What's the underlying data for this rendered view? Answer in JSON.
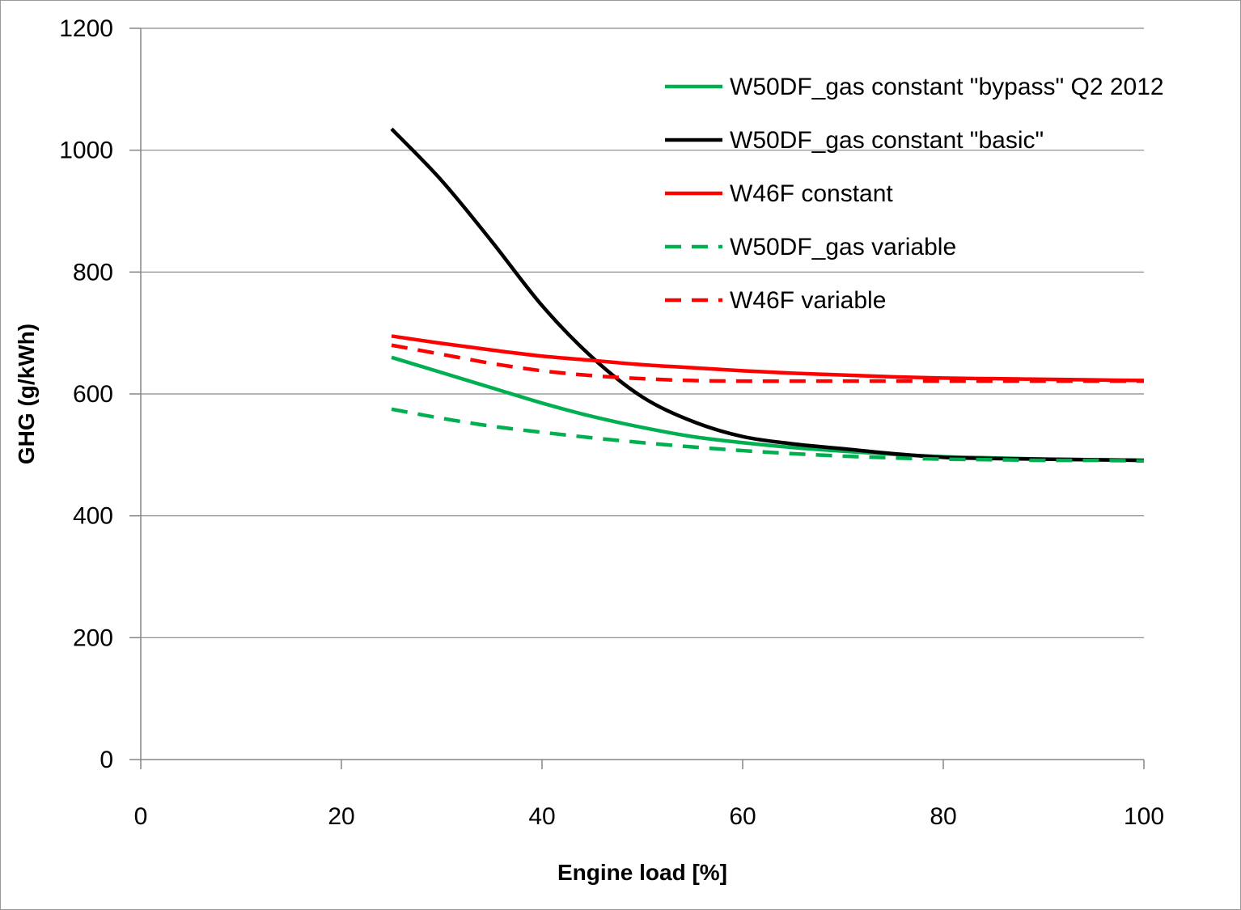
{
  "chart_data": {
    "type": "line",
    "title": "",
    "xlabel": "Engine load [%]",
    "ylabel": "GHG (g/kWh)",
    "xlim": [
      0,
      100
    ],
    "ylim": [
      0,
      1200
    ],
    "xticks": [
      "0",
      "20",
      "40",
      "60",
      "80",
      "100"
    ],
    "yticks": [
      "0",
      "200",
      "400",
      "600",
      "800",
      "1000",
      "1200"
    ],
    "grid": "horizontal",
    "legend_position": "top-right",
    "series": [
      {
        "name": "W50DF_gas constant \"bypass\" Q2 2012",
        "color": "#00b050",
        "dash": "solid",
        "x": [
          25,
          30,
          35,
          40,
          45,
          50,
          55,
          60,
          65,
          70,
          75,
          80,
          85,
          90,
          95,
          100
        ],
        "y": [
          660,
          635,
          610,
          585,
          563,
          545,
          530,
          520,
          512,
          506,
          501,
          497,
          495,
          493,
          492,
          491
        ]
      },
      {
        "name": "W50DF_gas constant \"basic\"",
        "color": "#000000",
        "dash": "solid",
        "x": [
          25,
          30,
          35,
          40,
          45,
          50,
          55,
          60,
          65,
          70,
          75,
          80,
          85,
          90,
          95,
          100
        ],
        "y": [
          1035,
          950,
          850,
          745,
          660,
          595,
          555,
          530,
          518,
          510,
          502,
          496,
          494,
          493,
          492,
          491
        ]
      },
      {
        "name": "W46F constant",
        "color": "#ff0000",
        "dash": "solid",
        "x": [
          25,
          30,
          35,
          40,
          45,
          50,
          55,
          60,
          65,
          70,
          75,
          80,
          85,
          90,
          95,
          100
        ],
        "y": [
          695,
          683,
          672,
          662,
          655,
          648,
          643,
          638,
          634,
          631,
          628,
          626,
          625,
          624,
          623,
          622
        ]
      },
      {
        "name": "W50DF_gas variable",
        "color": "#00b050",
        "dash": "dashed",
        "x": [
          25,
          30,
          35,
          40,
          45,
          50,
          55,
          60,
          65,
          70,
          75,
          80,
          85,
          90,
          95,
          100
        ],
        "y": [
          575,
          560,
          547,
          537,
          528,
          520,
          513,
          507,
          502,
          498,
          495,
          493,
          492,
          491,
          491,
          490
        ]
      },
      {
        "name": "W46F variable",
        "color": "#ff0000",
        "dash": "dashed",
        "x": [
          25,
          30,
          35,
          40,
          45,
          50,
          55,
          60,
          65,
          70,
          75,
          80,
          85,
          90,
          95,
          100
        ],
        "y": [
          680,
          665,
          650,
          638,
          630,
          625,
          622,
          621,
          621,
          621,
          621,
          621,
          621,
          621,
          621,
          621
        ]
      }
    ]
  }
}
